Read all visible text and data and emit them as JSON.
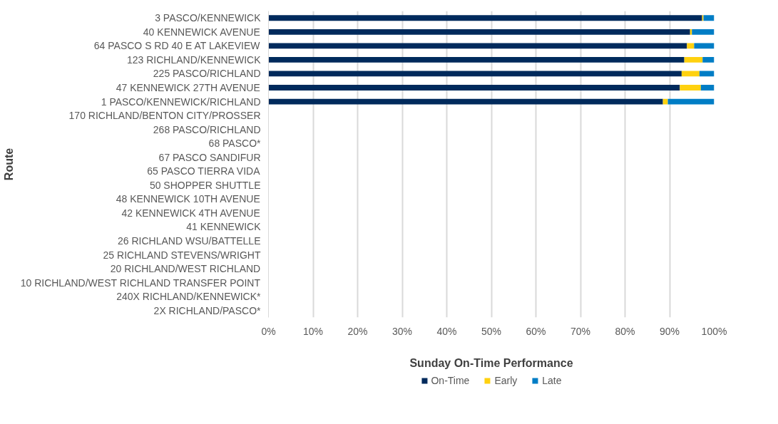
{
  "chart_data": {
    "type": "bar",
    "orientation": "horizontal",
    "stacked": true,
    "xlabel": "Sunday On-Time Performance",
    "ylabel": "Route",
    "categories": [
      "3 PASCO/KENNEWICK",
      "40 KENNEWICK AVENUE",
      "64 PASCO S RD 40 E AT LAKEVIEW",
      "123 RICHLAND/KENNEWICK",
      "225 PASCO/RICHLAND",
      "47 KENNEWICK 27TH AVENUE",
      "1 PASCO/KENNEWICK/RICHLAND",
      "170 RICHLAND/BENTON CITY/PROSSER",
      "268 PASCO/RICHLAND",
      "68 PASCO*",
      "67 PASCO SANDIFUR",
      "65 PASCO TIERRA VIDA",
      "50 SHOPPER SHUTTLE",
      "48 KENNEWICK 10TH AVENUE",
      "42 KENNEWICK 4TH AVENUE",
      "41 KENNEWICK",
      "26 RICHLAND WSU/BATTELLE",
      "25 RICHLAND STEVENS/WRIGHT",
      "20 RICHLAND/WEST RICHLAND",
      "10 RICHLAND/WEST RICHLAND TRANSFER POINT",
      "240X RICHLAND/KENNEWICK*",
      "2X RICHLAND/PASCO*"
    ],
    "series": [
      {
        "name": "On-Time",
        "color": "#002a5c",
        "values": [
          97.3,
          94.6,
          93.9,
          93.3,
          92.7,
          92.3,
          88.5,
          null,
          null,
          null,
          null,
          null,
          null,
          null,
          null,
          null,
          null,
          null,
          null,
          null,
          null,
          null
        ]
      },
      {
        "name": "Early",
        "color": "#ffd10f",
        "values": [
          0.3,
          0.4,
          1.6,
          4.1,
          4.0,
          4.7,
          1.1,
          null,
          null,
          null,
          null,
          null,
          null,
          null,
          null,
          null,
          null,
          null,
          null,
          null,
          null,
          null
        ]
      },
      {
        "name": "Late",
        "color": "#007dc5",
        "values": [
          2.4,
          5.0,
          4.5,
          2.6,
          3.3,
          3.0,
          10.4,
          null,
          null,
          null,
          null,
          null,
          null,
          null,
          null,
          null,
          null,
          null,
          null,
          null,
          null,
          null
        ]
      }
    ],
    "xlim": [
      0,
      100
    ],
    "xticks": [
      {
        "value": 0,
        "label": "0%"
      },
      {
        "value": 10,
        "label": "10%"
      },
      {
        "value": 20,
        "label": "20%"
      },
      {
        "value": 30,
        "label": "30%"
      },
      {
        "value": 40,
        "label": "40%"
      },
      {
        "value": 50,
        "label": "50%"
      },
      {
        "value": 60,
        "label": "60%"
      },
      {
        "value": 70,
        "label": "70%"
      },
      {
        "value": 80,
        "label": "80%"
      },
      {
        "value": 90,
        "label": "90%"
      },
      {
        "value": 100,
        "label": "100%"
      }
    ],
    "grid": "x",
    "legend": "bottom"
  }
}
